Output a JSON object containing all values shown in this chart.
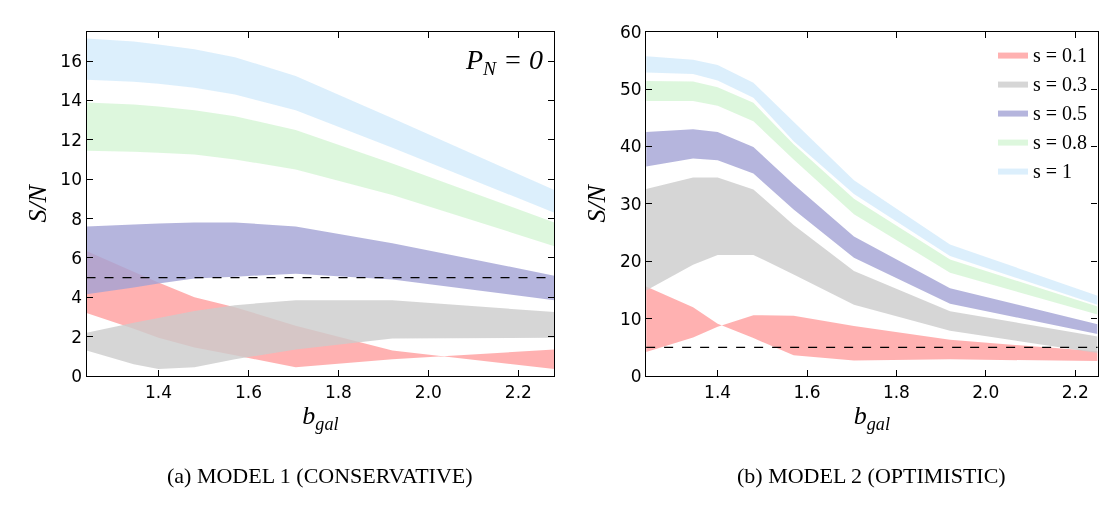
{
  "chart_data": [
    {
      "type": "area",
      "title": "(a) MODEL 1 (CONSERVATIVE)",
      "xlabel": "b$_{gal}$",
      "ylabel": "S/N",
      "x": [
        1.24,
        1.345,
        1.4,
        1.48,
        1.57,
        1.705,
        1.92,
        2.28
      ],
      "xlim": [
        1.24,
        2.28
      ],
      "xticks": [
        1.4,
        1.6,
        1.8,
        {
          "value": 2.0,
          "label": "2.0"
        },
        2.2
      ],
      "ylim": [
        0,
        17.5
      ],
      "yticks": [
        0,
        2,
        4,
        6,
        8,
        10,
        12,
        14,
        16
      ],
      "legend": false,
      "series": [
        {
          "color": "#ff9e9e",
          "values": [
            null,
            null,
            null,
            null,
            null,
            null,
            null,
            null
          ],
          "lower": [
            3.2,
            2.4,
            1.95,
            1.45,
            1.05,
            0.45,
            0.85,
            1.35
          ],
          "upper": [
            6.35,
            5.3,
            4.75,
            4.0,
            3.5,
            2.55,
            1.3,
            0.35
          ]
        },
        {
          "color": "#cccccc",
          "values": [
            null,
            null,
            null,
            null,
            null,
            null,
            null,
            null
          ],
          "lower": [
            1.3,
            0.6,
            0.35,
            0.45,
            0.85,
            1.35,
            1.9,
            1.95
          ],
          "upper": [
            2.2,
            2.7,
            2.95,
            3.3,
            3.6,
            3.85,
            3.85,
            3.25
          ]
        },
        {
          "color": "#a3a3d4",
          "values": [
            null,
            null,
            null,
            null,
            null,
            null,
            null,
            null
          ],
          "lower": [
            4.15,
            4.5,
            4.7,
            4.95,
            5.05,
            5.2,
            4.9,
            3.85
          ],
          "upper": [
            7.6,
            7.7,
            7.75,
            7.8,
            7.8,
            7.6,
            6.75,
            5.1
          ]
        },
        {
          "color": "#d4f5d4",
          "values": [
            null,
            null,
            null,
            null,
            null,
            null,
            null,
            null
          ],
          "lower": [
            11.45,
            11.4,
            11.35,
            11.25,
            11.0,
            10.5,
            9.2,
            6.6
          ],
          "upper": [
            13.9,
            13.8,
            13.7,
            13.5,
            13.2,
            12.5,
            10.8,
            7.8
          ]
        },
        {
          "color": "#d3ebfb",
          "values": [
            null,
            null,
            null,
            null,
            null,
            null,
            null,
            null
          ],
          "lower": [
            15.05,
            14.95,
            14.85,
            14.65,
            14.3,
            13.5,
            11.6,
            8.3
          ],
          "upper": [
            17.15,
            17.0,
            16.85,
            16.6,
            16.2,
            15.25,
            13.1,
            9.45
          ]
        }
      ],
      "ref_lines": [
        {
          "axis": "y",
          "value": 5,
          "color": "#000000",
          "line_style": "dashed"
        }
      ],
      "annotations": [
        "P$_{N}$ = 0"
      ]
    },
    {
      "type": "area",
      "title": "(b) MODEL 2 (OPTIMISTIC)",
      "xlabel": "b$_{gal}$",
      "ylabel": "S/N",
      "x": [
        1.24,
        1.345,
        1.4,
        1.48,
        1.57,
        1.705,
        1.92,
        2.25
      ],
      "xlim": [
        1.24,
        2.25
      ],
      "xticks": [
        1.4,
        1.6,
        1.8,
        {
          "value": 2.0,
          "label": "2.0"
        },
        2.2
      ],
      "ylim": [
        0,
        60
      ],
      "yticks": [
        0,
        10,
        20,
        30,
        40,
        50,
        60
      ],
      "legend": "top right",
      "series": [
        {
          "name": "s = 0.1",
          "color": "#ff9e9e",
          "values": [
            null,
            null,
            null,
            null,
            null,
            null,
            null,
            null
          ],
          "lower": [
            4.2,
            6.7,
            8.6,
            10.6,
            10.5,
            8.7,
            6.3,
            4.3
          ],
          "upper": [
            15.6,
            12.0,
            9.1,
            6.6,
            3.6,
            2.7,
            2.9,
            2.6
          ]
        },
        {
          "name": "s = 0.3",
          "color": "#cccccc",
          "values": [
            null,
            null,
            null,
            null,
            null,
            null,
            null,
            null
          ],
          "lower": [
            14.9,
            19.4,
            21.1,
            21.1,
            17.7,
            12.4,
            7.9,
            4.0
          ],
          "upper": [
            32.6,
            34.6,
            34.6,
            32.5,
            26.3,
            18.3,
            11.3,
            6.9
          ]
        },
        {
          "name": "s = 0.5",
          "color": "#a3a3d4",
          "values": [
            null,
            null,
            null,
            null,
            null,
            null,
            null,
            null
          ],
          "lower": [
            36.5,
            37.9,
            37.6,
            35.3,
            29.0,
            20.6,
            12.6,
            7.3
          ],
          "upper": [
            42.5,
            43.0,
            42.5,
            39.9,
            33.4,
            24.3,
            15.3,
            9.0
          ]
        },
        {
          "name": "s = 0.8",
          "color": "#d4f5d4",
          "values": [
            null,
            null,
            null,
            null,
            null,
            null,
            null,
            null
          ],
          "lower": [
            47.9,
            47.9,
            47.1,
            44.4,
            37.7,
            28.2,
            18.0,
            10.7
          ],
          "upper": [
            51.4,
            51.3,
            50.3,
            47.6,
            40.4,
            30.9,
            20.3,
            12.1
          ]
        },
        {
          "name": "s = 1",
          "color": "#d3ebfb",
          "values": [
            null,
            null,
            null,
            null,
            null,
            null,
            null,
            null
          ],
          "lower": [
            52.9,
            52.6,
            51.5,
            48.5,
            40.9,
            31.7,
            20.9,
            12.4
          ],
          "upper": [
            55.7,
            55.1,
            54.2,
            51.1,
            44.3,
            34.1,
            22.9,
            14.0
          ]
        }
      ],
      "ref_lines": [
        {
          "axis": "y",
          "value": 5,
          "color": "#000000",
          "line_style": "dashed"
        }
      ]
    }
  ]
}
